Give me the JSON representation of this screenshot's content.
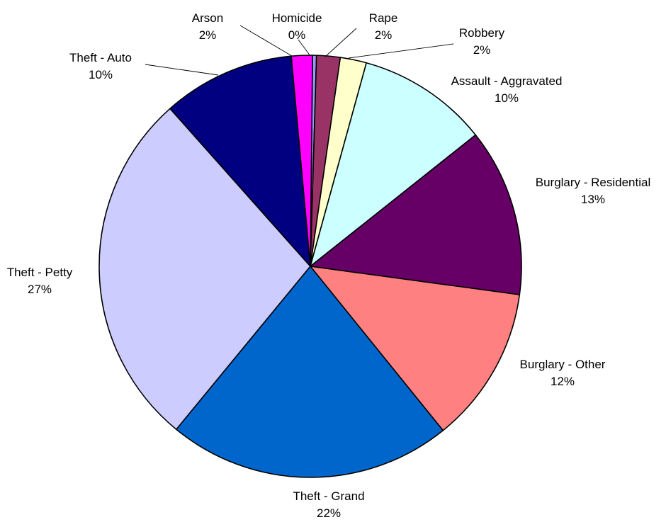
{
  "chart_data": {
    "type": "pie",
    "title": "",
    "slices": [
      {
        "label": "Homicide",
        "percent_label": "0%",
        "value": 0.3,
        "color": "#9999FF"
      },
      {
        "label": "Rape",
        "percent_label": "2%",
        "value": 1.8,
        "color": "#993366"
      },
      {
        "label": "Robbery",
        "percent_label": "2%",
        "value": 2.0,
        "color": "#FFFFCC"
      },
      {
        "label": "Assault - Aggravated",
        "percent_label": "10%",
        "value": 10.0,
        "color": "#CCFFFF"
      },
      {
        "label": "Burglary - Residential",
        "percent_label": "13%",
        "value": 12.8,
        "color": "#660066"
      },
      {
        "label": "Burglary - Other",
        "percent_label": "12%",
        "value": 12.0,
        "color": "#FF8080"
      },
      {
        "label": "Theft - Grand",
        "percent_label": "22%",
        "value": 21.7,
        "color": "#0066CC"
      },
      {
        "label": "Theft - Petty",
        "percent_label": "27%",
        "value": 27.4,
        "color": "#CCCCFF"
      },
      {
        "label": "Theft - Auto",
        "percent_label": "10%",
        "value": 10.1,
        "color": "#000080"
      },
      {
        "label": "Arson",
        "percent_label": "2%",
        "value": 1.6,
        "color": "#FF00FF"
      }
    ],
    "legend": "none"
  }
}
